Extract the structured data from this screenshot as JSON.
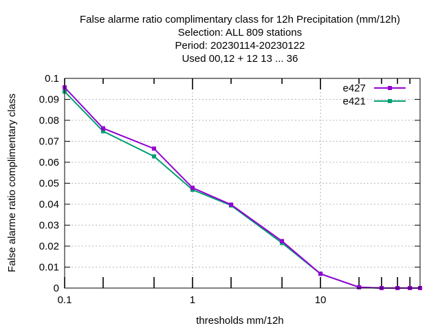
{
  "chart_data": {
    "type": "line",
    "title_lines": [
      "False alarme ratio complimentary class  for 12h Precipitation (mm/12h)",
      "Selection: ALL     809 stations",
      "Period: 20230114-20230122",
      "Used  00,12  + 12 13 ... 36"
    ],
    "xlabel": "thresholds mm/12h",
    "ylabel": "False alarme ratio complimentary class",
    "x_scale": "log",
    "xlim": [
      0.1,
      60
    ],
    "ylim": [
      0,
      0.1
    ],
    "x_tick_labels": [
      {
        "value": 0.1,
        "label": "0.1"
      },
      {
        "value": 1,
        "label": "1"
      },
      {
        "value": 10,
        "label": "10"
      }
    ],
    "x_minor_ticks": [
      0.2,
      0.5,
      2,
      5,
      20,
      30,
      40,
      50
    ],
    "y_ticks": [
      0,
      0.01,
      0.02,
      0.03,
      0.04,
      0.05,
      0.06,
      0.07,
      0.08,
      0.09,
      0.1
    ],
    "y_tick_labels": [
      "0",
      "0.01",
      "0.02",
      "0.03",
      "0.04",
      "0.05",
      "0.06",
      "0.07",
      "0.08",
      "0.09",
      "0.1"
    ],
    "grid": true,
    "legend_position": "top-right",
    "x": [
      0.1,
      0.2,
      0.5,
      1,
      2,
      5,
      10,
      20,
      30,
      40,
      50,
      60
    ],
    "series": [
      {
        "name": "e427",
        "color": "#9400d3",
        "values": [
          0.0957,
          0.0762,
          0.0665,
          0.0478,
          0.0398,
          0.0224,
          0.0068,
          0.0004,
          0.0,
          0.0,
          0.0,
          0.0
        ]
      },
      {
        "name": "e421",
        "color": "#009e73",
        "values": [
          0.0937,
          0.0748,
          0.0628,
          0.0469,
          0.0394,
          0.0215,
          0.0068,
          0.0004,
          0.0,
          0.0,
          0.0,
          0.0
        ]
      }
    ]
  }
}
